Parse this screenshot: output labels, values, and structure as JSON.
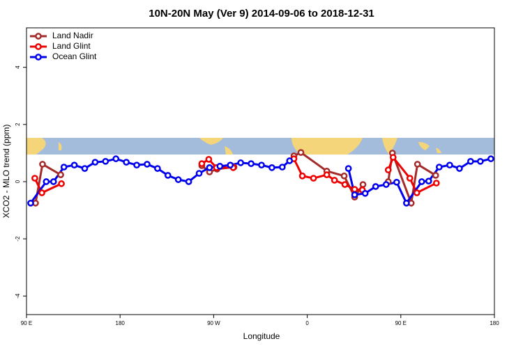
{
  "chart_data": {
    "type": "line",
    "title": "10N-20N May (Ver 9)   2014-09-06 to 2018-12-31",
    "x_label": "Longitude",
    "y_label": "XCO2 - MLO trend (ppm)",
    "xlim": [
      90,
      540
    ],
    "ylim": [
      -4.65,
      5.38
    ],
    "xticks": [
      {
        "value": 90,
        "label": "90 E"
      },
      180,
      {
        "value": 270,
        "label": "90 W"
      },
      {
        "value": 360,
        "label": "0"
      },
      {
        "value": 450,
        "label": "90 E"
      },
      {
        "value": 540,
        "label": "180"
      }
    ],
    "yticks": [
      -4,
      -2,
      0,
      2,
      4
    ],
    "legend": "top-left",
    "series": [
      {
        "name": "Land Nadir",
        "color": "#a52a2a",
        "x": [
          98.7,
          105.4,
          122.9,
          null,
          258.6,
          266,
          273.3,
          289.5,
          null,
          347.2,
          353.9,
          378.8,
          395.5,
          405.6,
          413.6,
          null,
          437.9,
          441.9,
          460,
          466,
          483.5
        ],
        "values": [
          -0.75,
          0.61,
          0.24,
          null,
          0.56,
          0.34,
          0.44,
          0.51,
          null,
          0.9,
          1.02,
          0.37,
          0.2,
          -0.54,
          -0.1,
          null,
          0,
          1.0,
          -0.75,
          0.61,
          0.22
        ]
      },
      {
        "name": "Land Glint",
        "color": "#ee0000",
        "x": [
          98,
          104.8,
          123.6,
          null,
          258.6,
          265.3,
          272.7,
          288.8,
          null,
          347.2,
          355.3,
          366,
          378.8,
          386.2,
          396.2,
          405.6,
          413,
          null,
          437.9,
          442.6,
          458.7,
          465.4,
          484.2
        ],
        "values": [
          0.12,
          -0.39,
          -0.07,
          null,
          0.63,
          0.78,
          0.49,
          0.49,
          null,
          0.8,
          0.2,
          0.12,
          0.24,
          0.05,
          -0.1,
          -0.27,
          -0.29,
          null,
          0.41,
          0.85,
          0.12,
          -0.39,
          -0.05
        ]
      },
      {
        "name": "Ocean Glint",
        "color": "#0000ee",
        "x": [
          94,
          109,
          116,
          126,
          136,
          146,
          156,
          166,
          176,
          186,
          196,
          206,
          216,
          226,
          236,
          246,
          256,
          266,
          276,
          286,
          296,
          306,
          316,
          326,
          336,
          343,
          null,
          399.6,
          405.6,
          415.7,
          425.8,
          435.9,
          446,
          455.4,
          470.1,
          476.8,
          486.9,
          497,
          506.4,
          517.1,
          526.5,
          536.6
        ],
        "values": [
          -0.75,
          0,
          0,
          0.51,
          0.58,
          0.46,
          0.68,
          0.71,
          0.8,
          0.68,
          0.58,
          0.61,
          0.46,
          0.22,
          0.07,
          0,
          0.29,
          0.49,
          0.54,
          0.58,
          0.66,
          0.63,
          0.58,
          0.49,
          0.51,
          0.73,
          null,
          0.46,
          -0.46,
          -0.41,
          -0.17,
          -0.1,
          -0.02,
          -0.75,
          0,
          0.02,
          0.51,
          0.58,
          0.46,
          0.71,
          0.71,
          0.8
        ]
      }
    ]
  }
}
